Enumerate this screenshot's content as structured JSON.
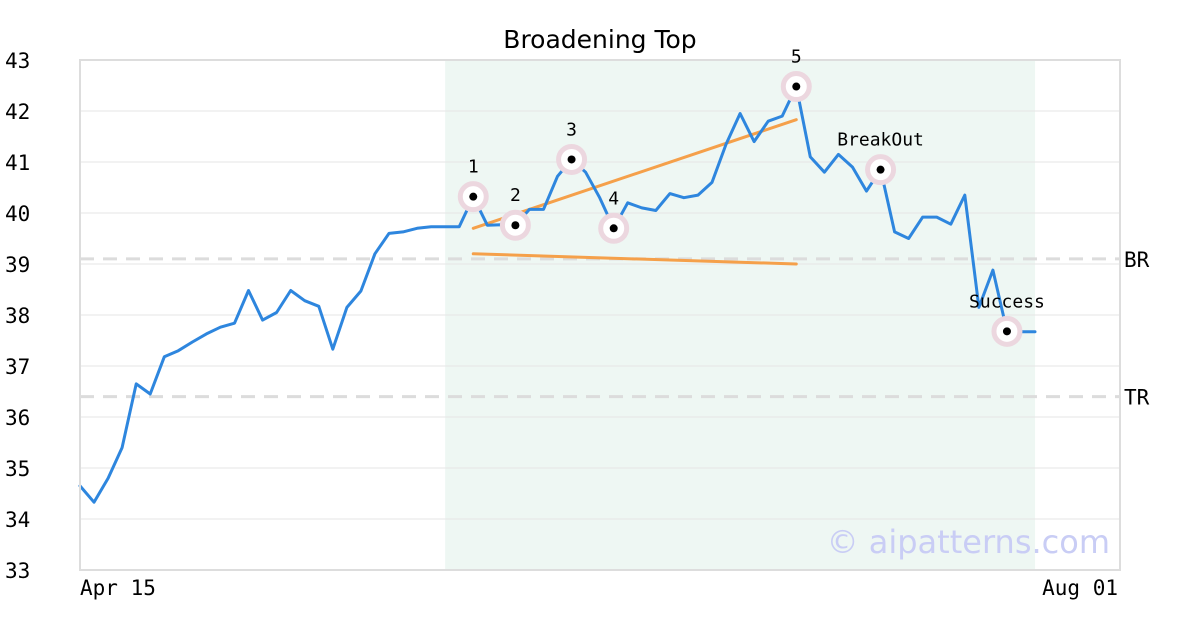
{
  "chart_data": {
    "type": "line",
    "title": "Broadening Top",
    "ylim": [
      33,
      43
    ],
    "yticks": [
      33,
      34,
      35,
      36,
      37,
      38,
      39,
      40,
      41,
      42,
      43
    ],
    "x_labels": {
      "start": "Apr 15",
      "end": "Aug 01"
    },
    "grid": true,
    "series": [
      {
        "color": "#2e86de",
        "values": [
          34.65,
          34.33,
          34.8,
          35.4,
          36.65,
          36.45,
          37.18,
          37.3,
          37.47,
          37.63,
          37.76,
          37.84,
          38.48,
          37.9,
          38.05,
          38.48,
          38.28,
          38.17,
          37.33,
          38.15,
          38.47,
          39.2,
          39.6,
          39.63,
          39.7,
          39.73,
          39.73,
          39.73,
          40.32,
          39.76,
          39.77,
          39.76,
          40.07,
          40.07,
          40.72,
          41.05,
          40.8,
          40.3,
          39.7,
          40.2,
          40.1,
          40.05,
          40.38,
          40.3,
          40.35,
          40.6,
          41.35,
          41.95,
          41.4,
          41.8,
          41.9,
          42.48,
          41.1,
          40.8,
          41.15,
          40.9,
          40.43,
          40.85,
          39.63,
          39.5,
          39.92,
          39.92,
          39.78,
          40.35,
          38.15,
          38.88,
          37.68,
          37.67,
          37.67
        ]
      }
    ],
    "highlight_region": {
      "start_index": 26,
      "end_index": 68,
      "color": "#eef7f3"
    },
    "trendlines": [
      {
        "color": "#f5a04a",
        "points": [
          [
            28,
            39.7
          ],
          [
            51,
            41.83
          ]
        ]
      },
      {
        "color": "#f5a04a",
        "points": [
          [
            28,
            39.2
          ],
          [
            51,
            39.0
          ]
        ]
      }
    ],
    "reference_lines": [
      {
        "label": "BR",
        "value": 39.1
      },
      {
        "label": "TR",
        "value": 36.4
      }
    ],
    "annotations": [
      {
        "label": "1",
        "index": 28,
        "value": 40.32
      },
      {
        "label": "2",
        "index": 31,
        "value": 39.76
      },
      {
        "label": "3",
        "index": 35,
        "value": 41.05
      },
      {
        "label": "4",
        "index": 38,
        "value": 39.7
      },
      {
        "label": "5",
        "index": 51,
        "value": 42.48
      },
      {
        "label": "BreakOut",
        "index": 57,
        "value": 40.85
      },
      {
        "label": "Success",
        "index": 66,
        "value": 37.68
      }
    ],
    "watermark": "© aipatterns.com"
  }
}
